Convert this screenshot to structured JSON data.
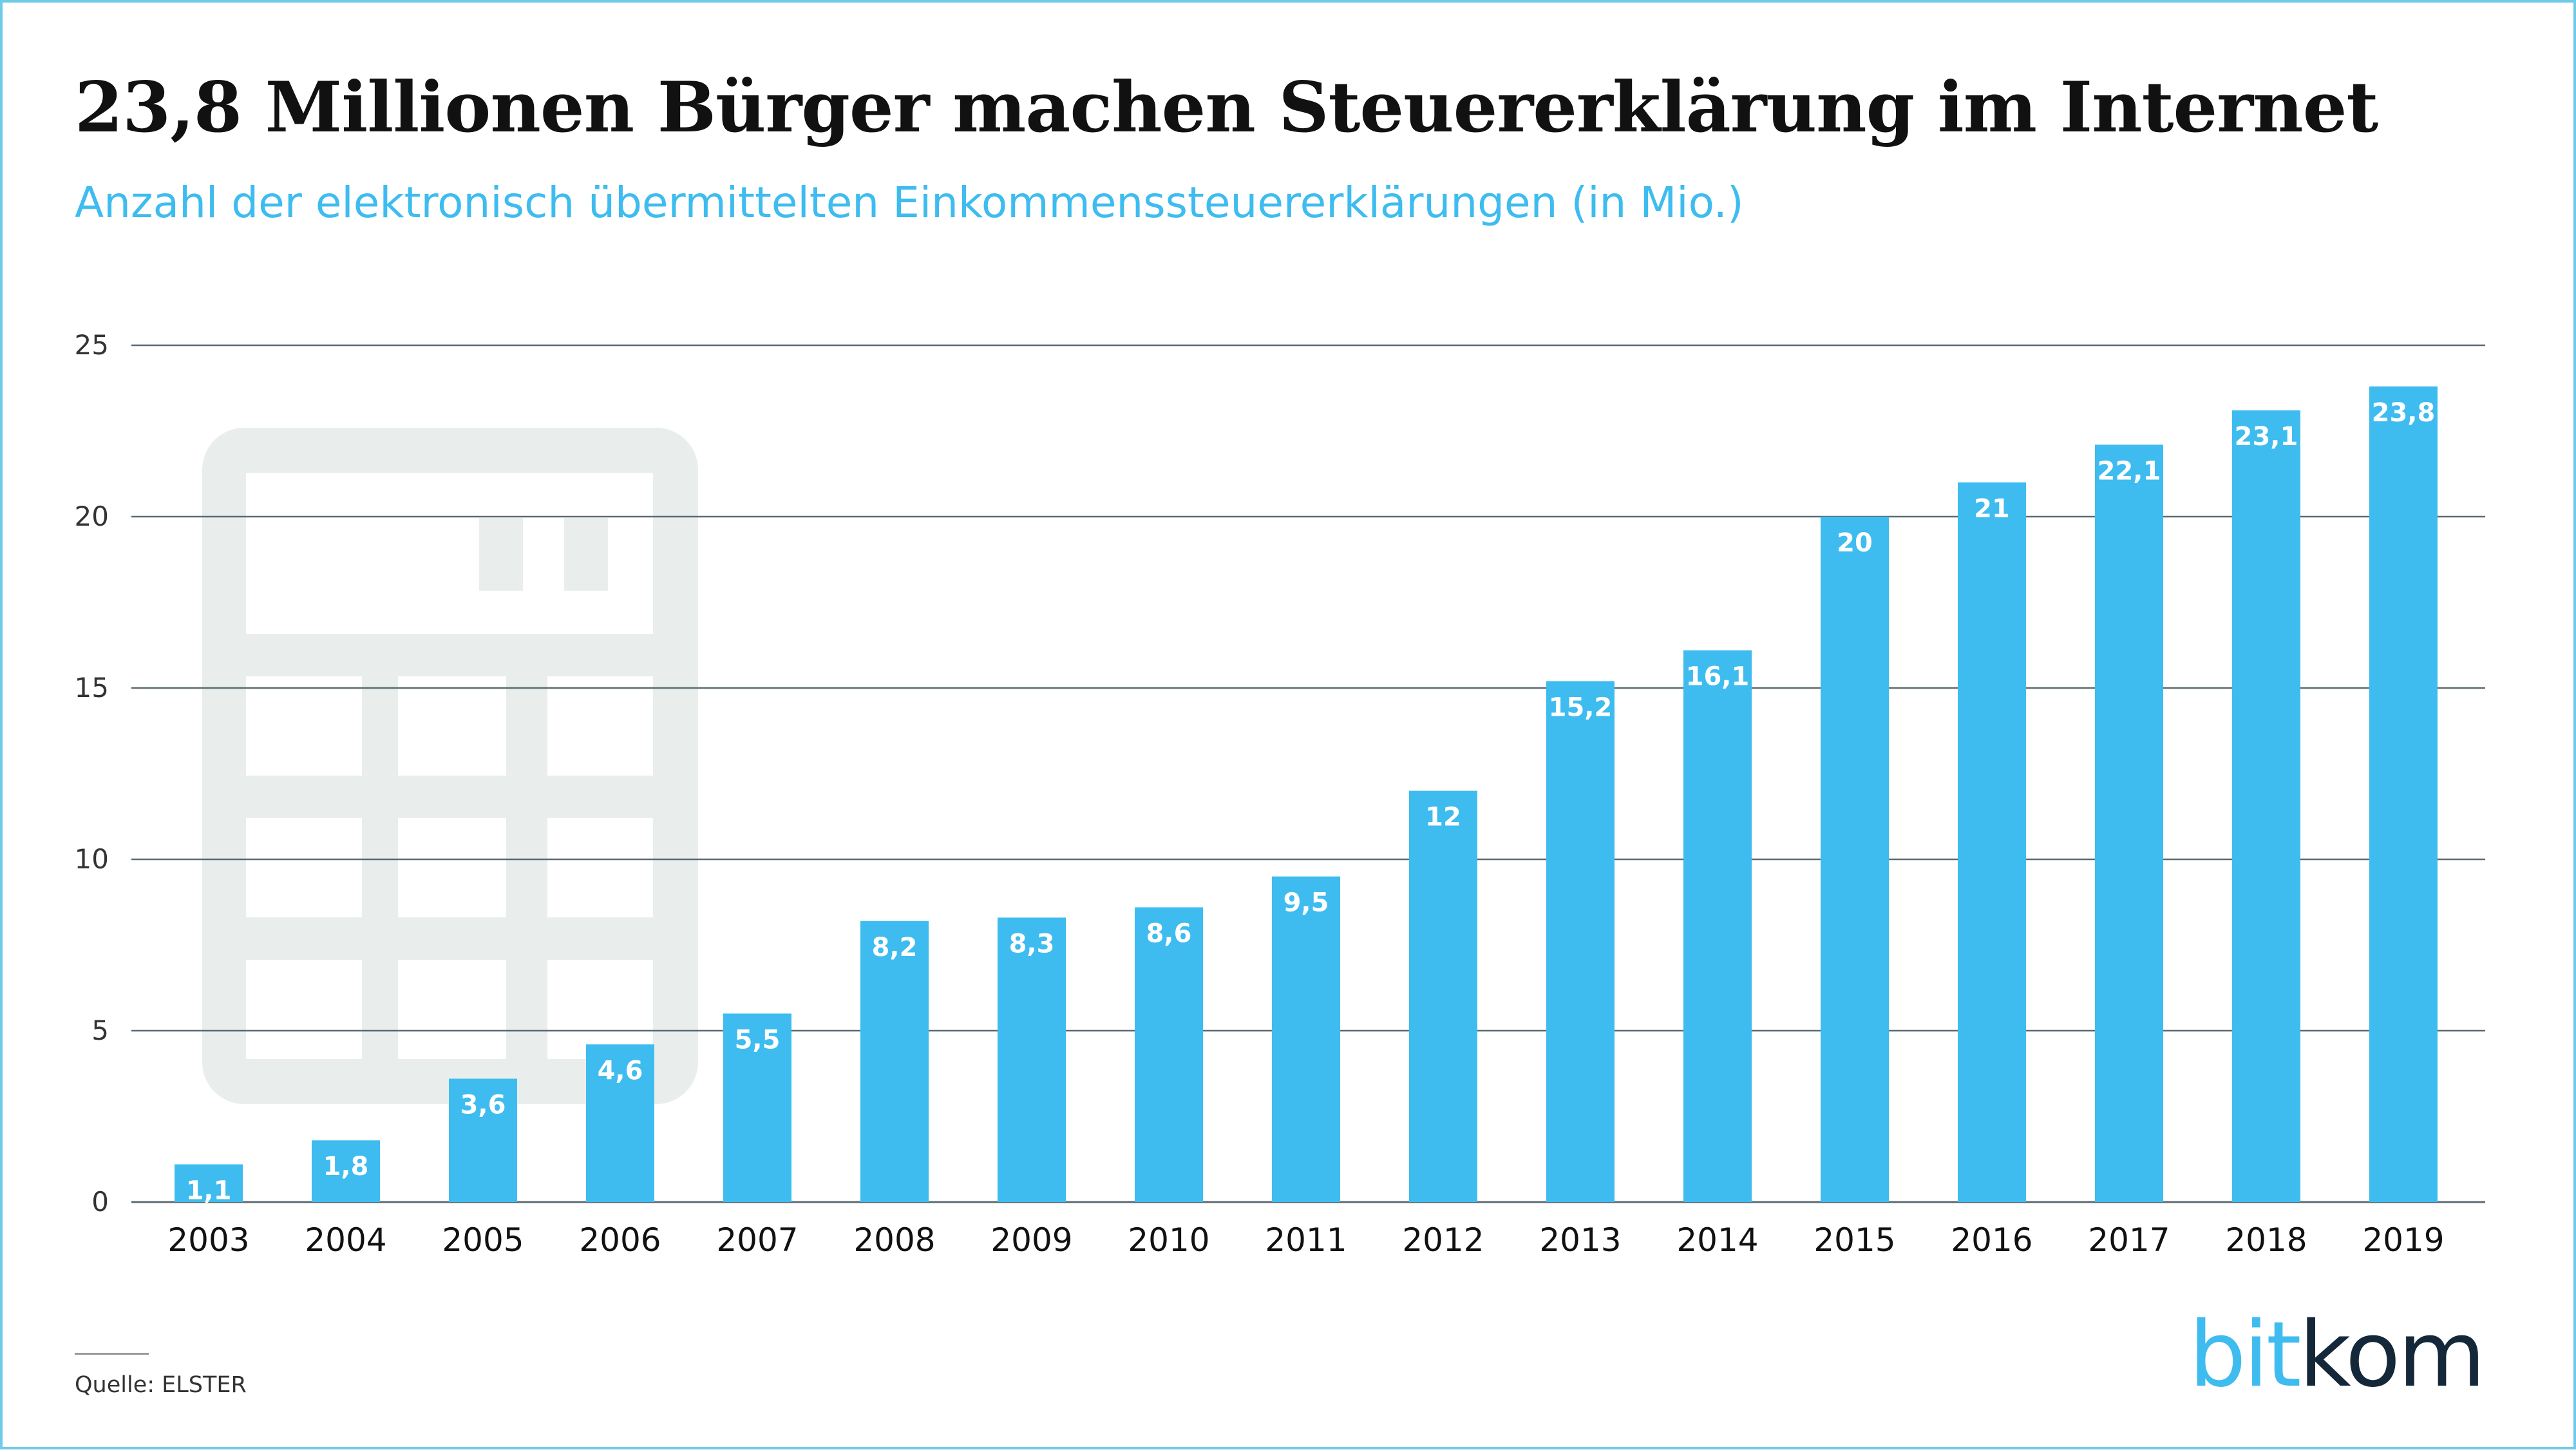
{
  "title": "23,8 Millionen Bürger machen Steuererklärung im Internet",
  "subtitle": "Anzahl der elektronisch übermittelten Einkommenssteuererklärungen (in Mio.)",
  "source": "Quelle: ELSTER",
  "logo": {
    "part1": "bit",
    "part2": "kom"
  },
  "colors": {
    "bar": "#3ebcef",
    "grid": "#5a6b72",
    "text": "#111111",
    "value_label": "#ffffff",
    "watermark": "#e9eeec"
  },
  "background_icon": "calculator-icon",
  "chart_data": {
    "type": "bar",
    "categories": [
      "2003",
      "2004",
      "2005",
      "2006",
      "2007",
      "2008",
      "2009",
      "2010",
      "2011",
      "2012",
      "2013",
      "2014",
      "2015",
      "2016",
      "2017",
      "2018",
      "2019"
    ],
    "values": [
      1.1,
      1.8,
      3.6,
      4.6,
      5.5,
      8.2,
      8.3,
      8.6,
      9.5,
      12,
      15.2,
      16.1,
      20,
      21,
      22.1,
      23.1,
      23.8
    ],
    "value_labels": [
      "1,1",
      "1,8",
      "3,6",
      "4,6",
      "5,5",
      "8,2",
      "8,3",
      "8,6",
      "9,5",
      "12",
      "15,2",
      "16,1",
      "20",
      "21",
      "22,1",
      "23,1",
      "23,8"
    ],
    "yticks": [
      0,
      5,
      10,
      15,
      20,
      25
    ],
    "ylim": [
      0,
      25
    ],
    "grid": true,
    "legend": "none"
  }
}
